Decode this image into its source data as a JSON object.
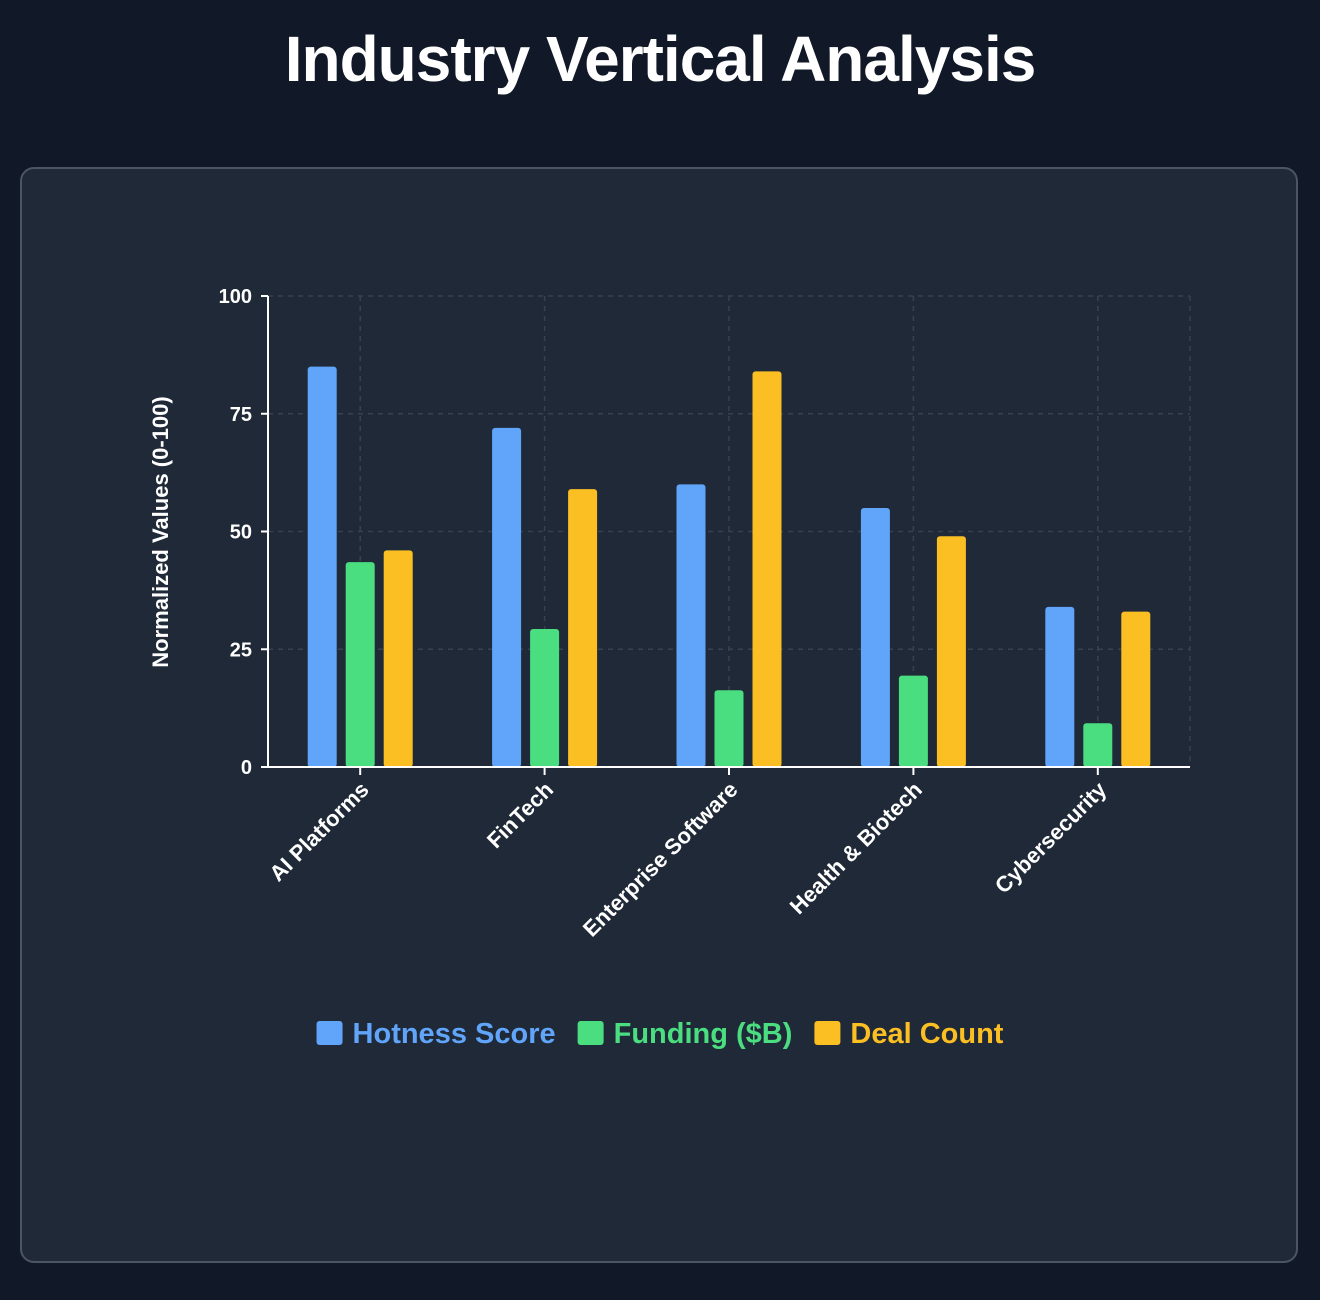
{
  "page": {
    "title": "Industry Vertical Analysis"
  },
  "colors": {
    "background": "#111827",
    "card": "#1f2937",
    "grid": "#374151",
    "axis": "#ffffff"
  },
  "chart_data": {
    "type": "bar",
    "title": "Industry Vertical Analysis",
    "xlabel": "",
    "ylabel": "Normalized Values (0-100)",
    "ylim": [
      0,
      100
    ],
    "yticks": [
      "0",
      "25",
      "50",
      "75",
      "100"
    ],
    "grid": true,
    "legend_position": "bottom-center",
    "categories": [
      "AI Platforms",
      "FinTech",
      "Enterprise Software",
      "Health & Biotech",
      "Cybersecurity"
    ],
    "series": [
      {
        "name": "Hotness Score",
        "color": "#60a5fa",
        "values": [
          85,
          72,
          60,
          55,
          34
        ]
      },
      {
        "name": "Funding ($B)",
        "color": "#4ade80",
        "values": [
          43.5,
          29.3,
          16.3,
          19.4,
          9.3
        ]
      },
      {
        "name": "Deal Count",
        "color": "#fbbf24",
        "values": [
          46,
          59,
          84,
          49,
          33
        ]
      }
    ]
  }
}
